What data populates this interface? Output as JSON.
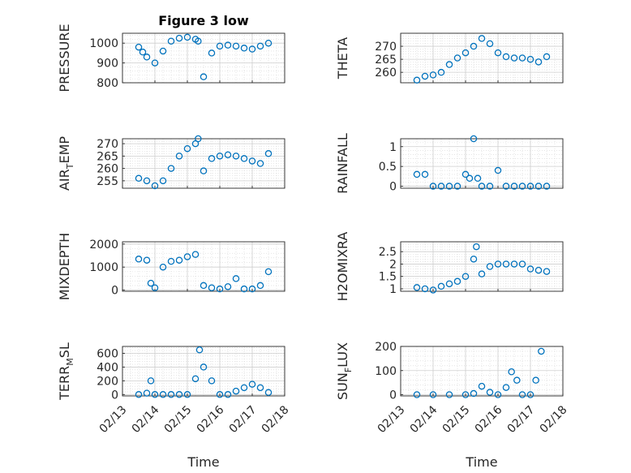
{
  "figure": {
    "title": "Figure 3 low",
    "marker_color": "#0072BD"
  },
  "chart_data": [
    {
      "type": "scatter",
      "panel": "PRESSURE",
      "ylabel": "PRESSURE",
      "ylim": [
        800,
        1050
      ],
      "yticks": [
        800,
        900,
        1000
      ],
      "grid": "on",
      "xlim": [
        "02/13 00:00",
        "02/18 00:00"
      ],
      "x": [
        "02/13 12:00",
        "02/13 15:00",
        "02/13 18:00",
        "02/14 00:00",
        "02/14 06:00",
        "02/14 12:00",
        "02/14 18:00",
        "02/15 00:00",
        "02/15 06:00",
        "02/15 08:00",
        "02/15 12:00",
        "02/15 18:00",
        "02/16 00:00",
        "02/16 06:00",
        "02/16 12:00",
        "02/16 18:00",
        "02/17 00:00",
        "02/17 06:00",
        "02/17 12:00"
      ],
      "y": [
        980,
        955,
        930,
        900,
        960,
        1010,
        1025,
        1030,
        1020,
        1010,
        830,
        950,
        985,
        990,
        985,
        975,
        970,
        985,
        1000
      ]
    },
    {
      "type": "scatter",
      "panel": "THETA",
      "ylabel": "THETA",
      "ylim": [
        256,
        275
      ],
      "yticks": [
        260,
        265,
        270
      ],
      "grid": "on",
      "xlim": [
        "02/13 00:00",
        "02/18 00:00"
      ],
      "x": [
        "02/13 12:00",
        "02/13 18:00",
        "02/14 00:00",
        "02/14 06:00",
        "02/14 12:00",
        "02/14 18:00",
        "02/15 00:00",
        "02/15 06:00",
        "02/15 12:00",
        "02/15 18:00",
        "02/16 00:00",
        "02/16 06:00",
        "02/16 12:00",
        "02/16 18:00",
        "02/17 00:00",
        "02/17 06:00",
        "02/17 12:00"
      ],
      "y": [
        257,
        258.5,
        259,
        260,
        263,
        265.5,
        267.5,
        270,
        273,
        271,
        267.5,
        266,
        265.5,
        265.5,
        265,
        264,
        266
      ]
    },
    {
      "type": "scatter",
      "panel": "AIR_TEMP",
      "ylabel": "AIR_TEMP",
      "ylim": [
        252,
        272
      ],
      "yticks": [
        255,
        260,
        265,
        270
      ],
      "grid": "on",
      "xlim": [
        "02/13 00:00",
        "02/18 00:00"
      ],
      "x": [
        "02/13 12:00",
        "02/13 18:00",
        "02/14 00:00",
        "02/14 06:00",
        "02/14 12:00",
        "02/14 18:00",
        "02/15 00:00",
        "02/15 06:00",
        "02/15 08:00",
        "02/15 12:00",
        "02/15 18:00",
        "02/16 00:00",
        "02/16 06:00",
        "02/16 12:00",
        "02/16 18:00",
        "02/17 00:00",
        "02/17 06:00",
        "02/17 12:00"
      ],
      "y": [
        256,
        255,
        253,
        255,
        260,
        265,
        268,
        270,
        272,
        259,
        264,
        265,
        265.5,
        265,
        264,
        263,
        262,
        266
      ]
    },
    {
      "type": "scatter",
      "panel": "RAINFALL",
      "ylabel": "RAINFALL",
      "ylim": [
        -0.05,
        1.2
      ],
      "yticks": [
        0,
        0.5,
        1
      ],
      "grid": "on",
      "xlim": [
        "02/13 00:00",
        "02/18 00:00"
      ],
      "x": [
        "02/13 12:00",
        "02/13 18:00",
        "02/14 00:00",
        "02/14 06:00",
        "02/14 12:00",
        "02/14 18:00",
        "02/15 00:00",
        "02/15 03:00",
        "02/15 06:00",
        "02/15 09:00",
        "02/15 12:00",
        "02/15 18:00",
        "02/16 00:00",
        "02/16 06:00",
        "02/16 12:00",
        "02/16 18:00",
        "02/17 00:00",
        "02/17 06:00",
        "02/17 12:00"
      ],
      "y": [
        0.3,
        0.3,
        0,
        0,
        0,
        0,
        0.3,
        0.2,
        1.2,
        0.2,
        0,
        0,
        0.4,
        0,
        0,
        0,
        0,
        0,
        0
      ]
    },
    {
      "type": "scatter",
      "panel": "MIXDEPTH",
      "ylabel": "MIXDEPTH",
      "ylim": [
        -50,
        2100
      ],
      "yticks": [
        0,
        1000,
        2000
      ],
      "grid": "on",
      "xlim": [
        "02/13 00:00",
        "02/18 00:00"
      ],
      "x": [
        "02/13 12:00",
        "02/13 18:00",
        "02/13 21:00",
        "02/14 00:00",
        "02/14 06:00",
        "02/14 12:00",
        "02/14 18:00",
        "02/15 00:00",
        "02/15 06:00",
        "02/15 12:00",
        "02/15 18:00",
        "02/16 00:00",
        "02/16 06:00",
        "02/16 12:00",
        "02/16 18:00",
        "02/17 00:00",
        "02/17 06:00",
        "02/17 12:00"
      ],
      "y": [
        1350,
        1300,
        300,
        100,
        1000,
        1250,
        1300,
        1450,
        1550,
        200,
        100,
        50,
        150,
        500,
        50,
        50,
        200,
        800
      ]
    },
    {
      "type": "scatter",
      "panel": "H2OMIXRA",
      "ylabel": "H2OMIXRA",
      "ylim": [
        0.9,
        2.9
      ],
      "yticks": [
        1,
        1.5,
        2,
        2.5
      ],
      "grid": "on",
      "xlim": [
        "02/13 00:00",
        "02/18 00:00"
      ],
      "x": [
        "02/13 12:00",
        "02/13 18:00",
        "02/14 00:00",
        "02/14 06:00",
        "02/14 12:00",
        "02/14 18:00",
        "02/15 00:00",
        "02/15 06:00",
        "02/15 08:00",
        "02/15 12:00",
        "02/15 18:00",
        "02/16 00:00",
        "02/16 06:00",
        "02/16 12:00",
        "02/16 18:00",
        "02/17 00:00",
        "02/17 06:00",
        "02/17 12:00"
      ],
      "y": [
        1.05,
        1,
        0.95,
        1.1,
        1.2,
        1.3,
        1.5,
        2.2,
        2.7,
        1.6,
        1.9,
        2,
        2,
        2,
        2,
        1.8,
        1.75,
        1.7
      ]
    },
    {
      "type": "scatter",
      "panel": "TERR_MSL",
      "ylabel": "TERR_MSL",
      "ylim": [
        -20,
        700
      ],
      "yticks": [
        0,
        200,
        400,
        600
      ],
      "grid": "on",
      "xlim": [
        "02/13 00:00",
        "02/18 00:00"
      ],
      "x": [
        "02/13 12:00",
        "02/13 18:00",
        "02/13 21:00",
        "02/14 00:00",
        "02/14 06:00",
        "02/14 12:00",
        "02/14 18:00",
        "02/15 00:00",
        "02/15 06:00",
        "02/15 09:00",
        "02/15 12:00",
        "02/15 18:00",
        "02/16 00:00",
        "02/16 06:00",
        "02/16 12:00",
        "02/16 18:00",
        "02/17 00:00",
        "02/17 06:00",
        "02/17 12:00"
      ],
      "y": [
        0,
        20,
        200,
        0,
        0,
        0,
        0,
        0,
        230,
        650,
        400,
        200,
        0,
        0,
        50,
        100,
        150,
        100,
        30
      ]
    },
    {
      "type": "scatter",
      "panel": "SUN_FLUX",
      "ylabel": "SUN_FLUX",
      "ylim": [
        -5,
        200
      ],
      "yticks": [
        0,
        100,
        200
      ],
      "grid": "on",
      "xlim": [
        "02/13 00:00",
        "02/18 00:00"
      ],
      "x": [
        "02/13 12:00",
        "02/14 00:00",
        "02/14 12:00",
        "02/15 00:00",
        "02/15 06:00",
        "02/15 12:00",
        "02/15 18:00",
        "02/16 00:00",
        "02/16 06:00",
        "02/16 10:00",
        "02/16 14:00",
        "02/16 18:00",
        "02/17 00:00",
        "02/17 04:00",
        "02/17 08:00"
      ],
      "y": [
        0,
        0,
        0,
        0,
        5,
        35,
        10,
        0,
        30,
        95,
        60,
        0,
        0,
        60,
        180
      ]
    }
  ],
  "axes": {
    "xticks": [
      "02/13",
      "02/14",
      "02/15",
      "02/16",
      "02/17",
      "02/18"
    ],
    "xlabel": "Time"
  }
}
